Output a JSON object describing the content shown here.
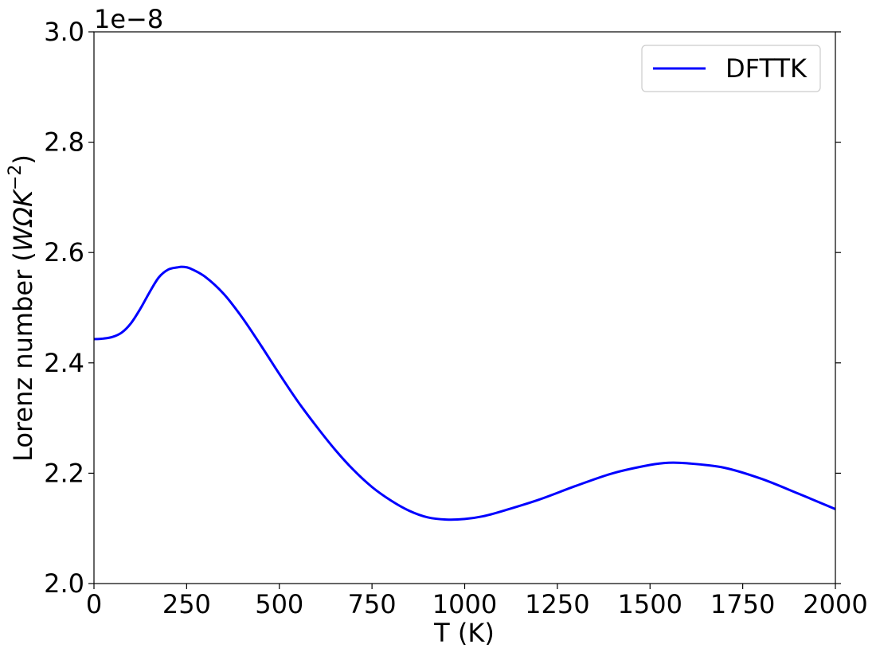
{
  "chart_data": {
    "type": "line",
    "title": "",
    "xlabel": "T (K)",
    "ylabel_prefix": "Lorenz number (",
    "ylabel_unit": "WΩK",
    "ylabel_exp": "−2",
    "ylabel_suffix": ")",
    "offset_text": "1e−8",
    "xlim": [
      0,
      2000
    ],
    "ylim": [
      2.0,
      3.0
    ],
    "y_scale_factor": 1e-08,
    "xticks": [
      0,
      250,
      500,
      750,
      1000,
      1250,
      1500,
      1750,
      2000
    ],
    "xtick_labels": [
      "0",
      "250",
      "500",
      "750",
      "1000",
      "1250",
      "1500",
      "1750",
      "2000"
    ],
    "yticks": [
      2.0,
      2.2,
      2.4,
      2.6,
      2.8,
      3.0
    ],
    "ytick_labels": [
      "2.0",
      "2.2",
      "2.4",
      "2.6",
      "2.8",
      "3.0"
    ],
    "grid": false,
    "legend_position": "top-right",
    "series": [
      {
        "name": "DFTTK",
        "color": "#0000ff",
        "x": [
          0,
          25,
          50,
          75,
          100,
          125,
          150,
          175,
          200,
          225,
          240,
          260,
          300,
          350,
          400,
          450,
          500,
          550,
          600,
          650,
          700,
          750,
          800,
          850,
          900,
          950,
          1000,
          1050,
          1100,
          1200,
          1300,
          1400,
          1500,
          1550,
          1600,
          1700,
          1800,
          1900,
          2000
        ],
        "values": [
          2.443,
          2.444,
          2.447,
          2.455,
          2.472,
          2.498,
          2.528,
          2.555,
          2.569,
          2.573,
          2.574,
          2.571,
          2.556,
          2.525,
          2.482,
          2.432,
          2.38,
          2.33,
          2.285,
          2.243,
          2.206,
          2.175,
          2.151,
          2.132,
          2.12,
          2.116,
          2.117,
          2.122,
          2.131,
          2.152,
          2.177,
          2.2,
          2.215,
          2.219,
          2.218,
          2.21,
          2.19,
          2.163,
          2.135
        ]
      }
    ]
  }
}
